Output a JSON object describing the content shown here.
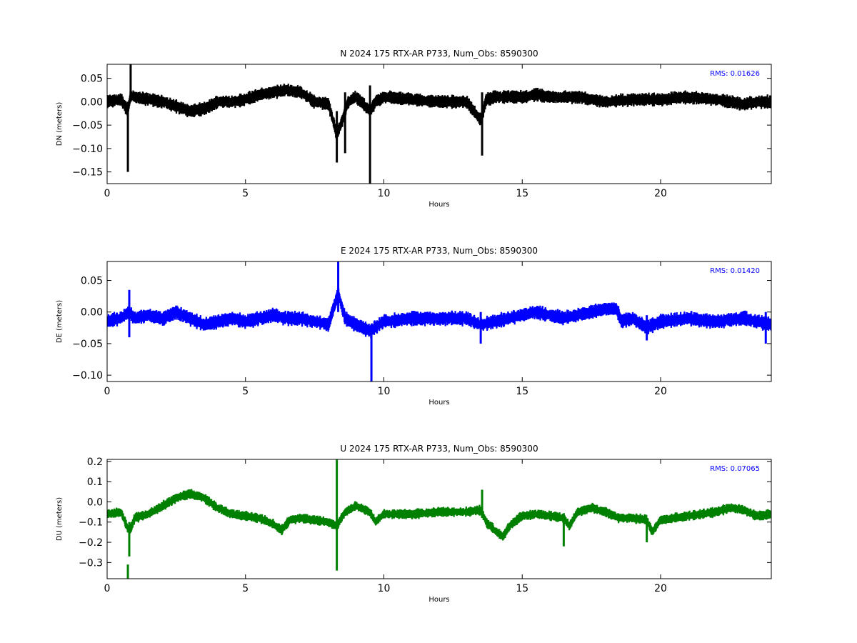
{
  "chart_data": [
    {
      "type": "line",
      "title": "N 2024 175 RTX-AR  P733, Num_Obs: 8590300",
      "xlabel": "Hours",
      "ylabel": "DN (meters)",
      "xlim": [
        0,
        24
      ],
      "ylim": [
        -0.175,
        0.08
      ],
      "xticks": [
        "0",
        "5",
        "10",
        "15",
        "20"
      ],
      "yticks": [
        "0.05",
        "0.00",
        "−0.05",
        "−0.10",
        "−0.15"
      ],
      "ytick_values": [
        0.05,
        0.0,
        -0.05,
        -0.1,
        -0.15
      ],
      "rms_text": "RMS:  0.01626",
      "color": "#000000",
      "series": [
        {
          "x": [
            0,
            0.5,
            0.75,
            0.85,
            1.0,
            1.5,
            2.0,
            2.5,
            3.0,
            3.5,
            4.0,
            4.5,
            5.0,
            5.5,
            6.0,
            6.5,
            7.0,
            7.5,
            8.0,
            8.3,
            8.5,
            8.7,
            9.0,
            9.5,
            9.7,
            10.0,
            11.0,
            12.0,
            13.0,
            13.5,
            13.7,
            14.0,
            15.0,
            15.5,
            16.0,
            17.0,
            18.0,
            19.0,
            20.0,
            21.0,
            22.0,
            22.5,
            23.0,
            23.5,
            24.0
          ],
          "y": [
            0.0,
            0.005,
            -0.02,
            0.015,
            0.01,
            0.005,
            0.0,
            -0.01,
            -0.02,
            -0.015,
            0.0,
            0.0,
            0.005,
            0.015,
            0.02,
            0.025,
            0.02,
            0.0,
            -0.005,
            -0.07,
            -0.04,
            0.0,
            0.01,
            -0.02,
            0.0,
            0.01,
            0.005,
            0.0,
            0.0,
            -0.04,
            0.005,
            0.01,
            0.01,
            0.015,
            0.01,
            0.01,
            0.0,
            0.005,
            0.005,
            0.01,
            0.005,
            0.0,
            -0.005,
            0.0,
            0.0
          ],
          "band": 0.016
        }
      ],
      "spikes": [
        {
          "x": 0.75,
          "ymin": -0.15,
          "ymax": 0.0
        },
        {
          "x": 0.85,
          "ymin": 0.0,
          "ymax": 0.08
        },
        {
          "x": 8.3,
          "ymin": -0.13,
          "ymax": -0.02
        },
        {
          "x": 8.6,
          "ymin": -0.11,
          "ymax": 0.02
        },
        {
          "x": 9.5,
          "ymin": -0.175,
          "ymax": 0.035
        },
        {
          "x": 13.55,
          "ymin": -0.115,
          "ymax": 0.02
        }
      ]
    },
    {
      "type": "line",
      "title": "E 2024 175 RTX-AR  P733, Num_Obs: 8590300",
      "xlabel": "Hours",
      "ylabel": "DE (meters)",
      "xlim": [
        0,
        24
      ],
      "ylim": [
        -0.11,
        0.08
      ],
      "xticks": [
        "0",
        "5",
        "10",
        "15",
        "20"
      ],
      "yticks": [
        "0.05",
        "0.00",
        "−0.05",
        "−0.10"
      ],
      "ytick_values": [
        0.05,
        0.0,
        -0.05,
        -0.1
      ],
      "rms_text": "RMS:  0.01420",
      "color": "#0000ff",
      "series": [
        {
          "x": [
            0,
            0.5,
            0.8,
            1.0,
            1.5,
            2.0,
            2.5,
            3.0,
            3.5,
            4.0,
            4.5,
            5.0,
            5.5,
            6.0,
            6.5,
            7.0,
            7.5,
            8.0,
            8.35,
            8.6,
            9.0,
            9.5,
            10.0,
            11.0,
            12.0,
            13.0,
            13.5,
            14.0,
            14.5,
            15.0,
            15.5,
            16.0,
            16.5,
            17.0,
            17.5,
            18.0,
            18.4,
            18.6,
            19.0,
            19.5,
            20.0,
            21.0,
            22.0,
            23.0,
            24.0
          ],
          "y": [
            -0.015,
            -0.01,
            0.0,
            -0.01,
            -0.005,
            -0.01,
            0.0,
            -0.01,
            -0.02,
            -0.015,
            -0.01,
            -0.015,
            -0.01,
            -0.005,
            -0.01,
            -0.01,
            -0.015,
            -0.02,
            0.03,
            -0.01,
            -0.02,
            -0.03,
            -0.015,
            -0.01,
            -0.01,
            -0.01,
            -0.02,
            -0.015,
            -0.01,
            -0.005,
            0.0,
            -0.005,
            -0.01,
            -0.005,
            0.0,
            0.005,
            0.005,
            -0.015,
            -0.01,
            -0.025,
            -0.015,
            -0.01,
            -0.015,
            -0.01,
            -0.02
          ],
          "band": 0.013
        }
      ],
      "spikes": [
        {
          "x": 0.8,
          "ymin": -0.04,
          "ymax": 0.035
        },
        {
          "x": 8.35,
          "ymin": 0.0,
          "ymax": 0.08
        },
        {
          "x": 9.55,
          "ymin": -0.11,
          "ymax": -0.02
        },
        {
          "x": 13.5,
          "ymin": -0.05,
          "ymax": 0.0
        },
        {
          "x": 19.5,
          "ymin": -0.045,
          "ymax": -0.005
        },
        {
          "x": 23.8,
          "ymin": -0.05,
          "ymax": 0.0
        }
      ]
    },
    {
      "type": "line",
      "title": "U 2024 175 RTX-AR  P733, Num_Obs: 8590300",
      "xlabel": "Hours",
      "ylabel": "DU (meters)",
      "xlim": [
        0,
        24
      ],
      "ylim": [
        -0.38,
        0.21
      ],
      "xticks": [
        "0",
        "5",
        "10",
        "15",
        "20"
      ],
      "yticks": [
        "0.2",
        "0.1",
        "0.0",
        "−0.1",
        "−0.2",
        "−0.3"
      ],
      "ytick_values": [
        0.2,
        0.1,
        0.0,
        -0.1,
        -0.2,
        -0.3
      ],
      "rms_text": "RMS:  0.07065",
      "color": "#008000",
      "series": [
        {
          "x": [
            0,
            0.5,
            0.8,
            1.0,
            1.5,
            2.0,
            2.5,
            3.0,
            3.5,
            4.0,
            4.5,
            5.0,
            5.5,
            6.0,
            6.3,
            6.6,
            7.0,
            7.5,
            8.0,
            8.3,
            8.6,
            9.0,
            9.5,
            9.7,
            10.0,
            11.0,
            12.0,
            13.0,
            13.5,
            13.7,
            14.0,
            14.3,
            14.6,
            15.0,
            15.5,
            16.0,
            16.5,
            16.7,
            17.0,
            17.5,
            18.0,
            18.5,
            19.0,
            19.5,
            19.7,
            20.0,
            21.0,
            22.0,
            22.5,
            23.0,
            23.5,
            24.0
          ],
          "y": [
            -0.06,
            -0.05,
            -0.15,
            -0.08,
            -0.06,
            -0.02,
            0.02,
            0.04,
            0.02,
            -0.03,
            -0.06,
            -0.07,
            -0.08,
            -0.11,
            -0.14,
            -0.09,
            -0.08,
            -0.09,
            -0.1,
            -0.12,
            -0.05,
            -0.02,
            -0.05,
            -0.1,
            -0.06,
            -0.06,
            -0.05,
            -0.05,
            -0.04,
            -0.1,
            -0.14,
            -0.17,
            -0.11,
            -0.07,
            -0.06,
            -0.07,
            -0.08,
            -0.12,
            -0.05,
            -0.03,
            -0.05,
            -0.08,
            -0.08,
            -0.09,
            -0.15,
            -0.09,
            -0.07,
            -0.05,
            -0.03,
            -0.04,
            -0.07,
            -0.06
          ],
          "band": 0.028
        }
      ],
      "spikes": [
        {
          "x": 0.75,
          "ymin": -0.38,
          "ymax": -0.31
        },
        {
          "x": 0.8,
          "ymin": -0.27,
          "ymax": -0.1
        },
        {
          "x": 8.3,
          "ymin": -0.34,
          "ymax": 0.21
        },
        {
          "x": 13.55,
          "ymin": -0.08,
          "ymax": 0.06
        },
        {
          "x": 16.5,
          "ymin": -0.22,
          "ymax": -0.06
        },
        {
          "x": 19.5,
          "ymin": -0.2,
          "ymax": -0.08
        }
      ]
    }
  ]
}
